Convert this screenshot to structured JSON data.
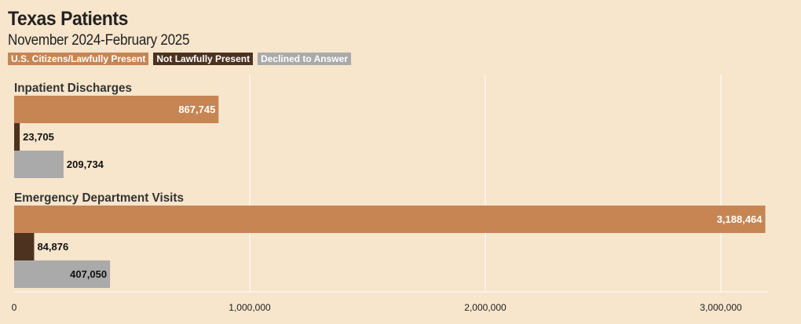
{
  "title": "Texas Patients",
  "subtitle": "November 2024-February 2025",
  "colors": {
    "citizens": "#c68553",
    "not_lawful": "#4d3220",
    "declined": "#aaaaaa",
    "grid": "#ffffff",
    "background": "#f7e5cc"
  },
  "legend": [
    {
      "label": "U.S. Citizens/Lawfully Present",
      "color": "#c68553"
    },
    {
      "label": "Not Lawfully Present",
      "color": "#4d3220"
    },
    {
      "label": "Declined to Answer",
      "color": "#aaaaaa"
    }
  ],
  "chart_data": {
    "type": "bar",
    "orientation": "horizontal",
    "title": "Texas Patients",
    "subtitle": "November 2024-February 2025",
    "categories": [
      "Inpatient Discharges",
      "Emergency Department Visits"
    ],
    "series": [
      {
        "name": "U.S. Citizens/Lawfully Present",
        "values": [
          867745,
          3188464
        ],
        "labels": [
          "867,745",
          "3,188,464"
        ]
      },
      {
        "name": "Not Lawfully Present",
        "values": [
          23705,
          84876
        ],
        "labels": [
          "23,705",
          "84,876"
        ]
      },
      {
        "name": "Declined to Answer",
        "values": [
          209734,
          407050
        ],
        "labels": [
          "209,734",
          "407,050"
        ]
      }
    ],
    "xlim": [
      0,
      3200000
    ],
    "xticks": [
      0,
      1000000,
      2000000,
      3000000
    ],
    "xtick_labels": [
      "0",
      "1,000,000",
      "2,000,000",
      "3,000,000"
    ],
    "grid": true,
    "legend_position": "top-left"
  }
}
